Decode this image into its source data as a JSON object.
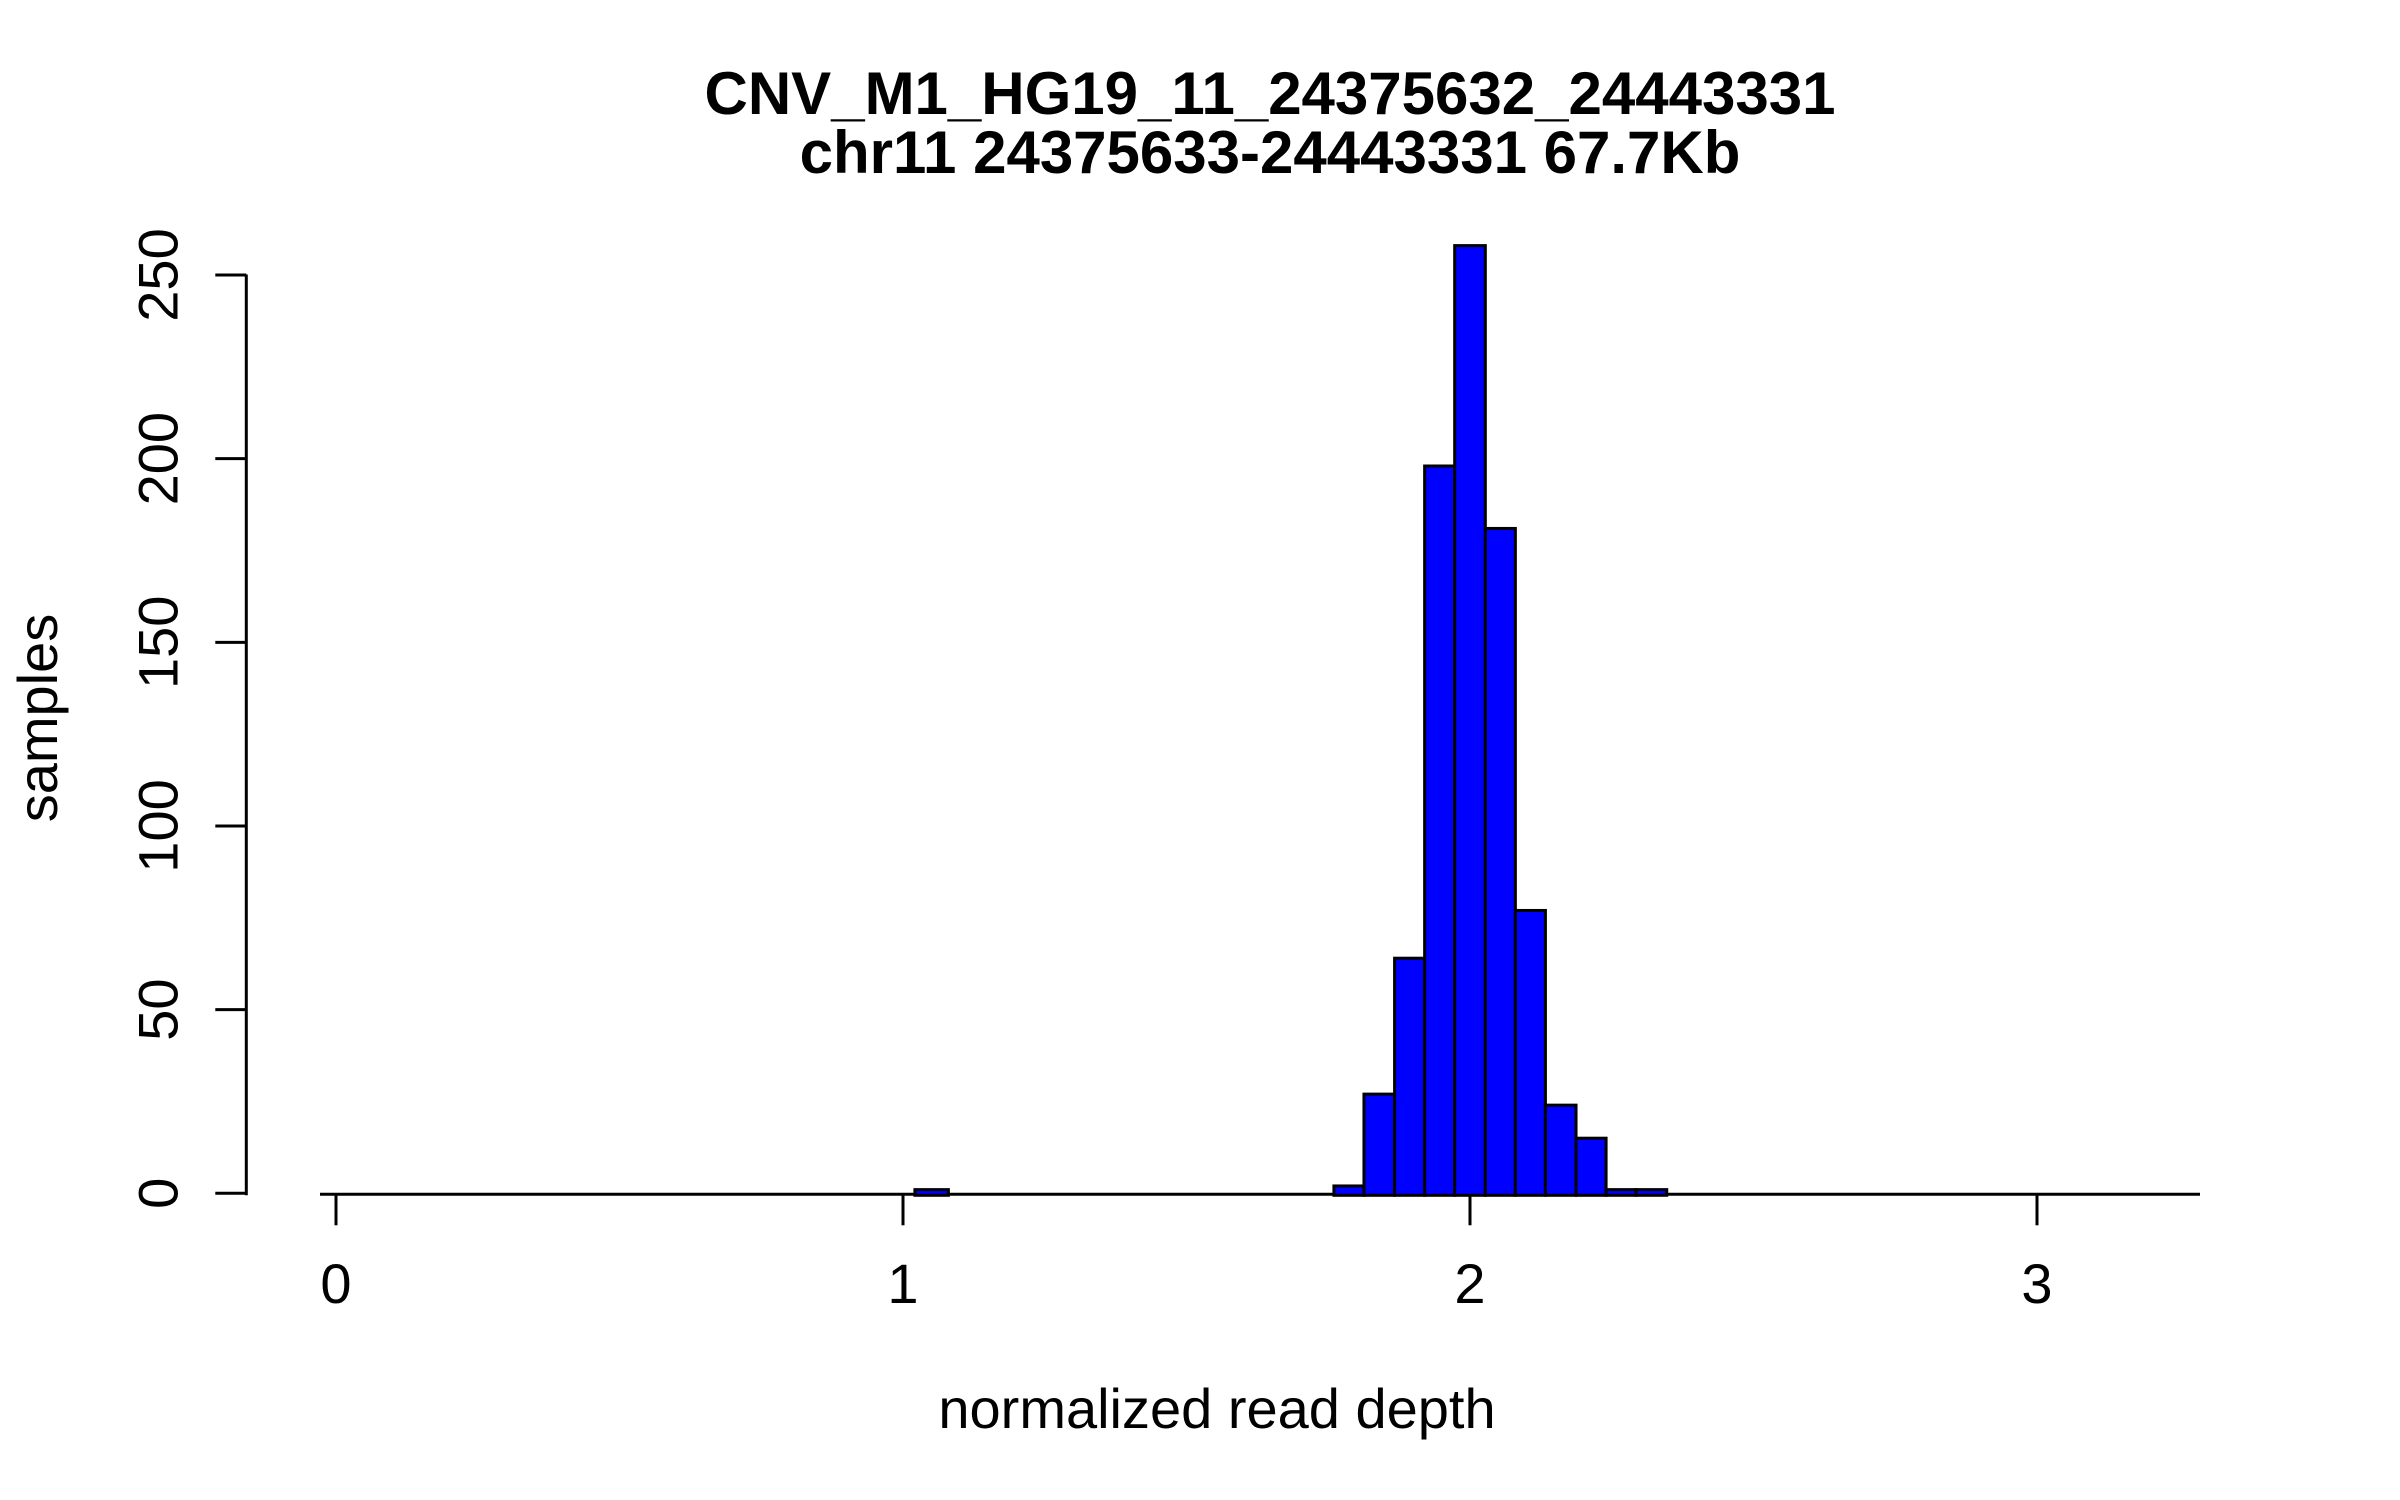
{
  "title": {
    "line1": "CNV_M1_HG19_11_24375632_24443331",
    "line2": "chr11 24375633-24443331 67.7Kb"
  },
  "axes": {
    "xlabel": "normalized read depth",
    "ylabel": "samples",
    "x_ticks": [
      0,
      1,
      2,
      3
    ],
    "y_ticks": [
      0,
      50,
      100,
      150,
      200,
      250
    ]
  },
  "colors": {
    "bar_fill": "#0000FF",
    "bar_border": "#000000",
    "axis": "#000000",
    "background": "#FFFFFF",
    "text": "#000000"
  },
  "chart_data": {
    "type": "bar",
    "title": "CNV_M1_HG19_11_24375632_24443331",
    "subtitle": "chr11 24375633-24443331 67.7Kb",
    "xlabel": "normalized read depth",
    "ylabel": "samples",
    "xlim": [
      -0.03,
      3.29
    ],
    "ylim": [
      0,
      258
    ],
    "grid": false,
    "legend": "none",
    "bins": [
      {
        "x0": 1.021,
        "x1": 1.08,
        "count": 1
      },
      {
        "x0": 1.76,
        "x1": 1.813,
        "count": 2
      },
      {
        "x0": 1.813,
        "x1": 1.867,
        "count": 27
      },
      {
        "x0": 1.867,
        "x1": 1.92,
        "count": 64
      },
      {
        "x0": 1.92,
        "x1": 1.973,
        "count": 198
      },
      {
        "x0": 1.973,
        "x1": 2.027,
        "count": 258
      },
      {
        "x0": 2.027,
        "x1": 2.08,
        "count": 181
      },
      {
        "x0": 2.08,
        "x1": 2.133,
        "count": 77
      },
      {
        "x0": 2.133,
        "x1": 2.187,
        "count": 24
      },
      {
        "x0": 2.187,
        "x1": 2.24,
        "count": 15
      },
      {
        "x0": 2.24,
        "x1": 2.293,
        "count": 1
      },
      {
        "x0": 2.293,
        "x1": 2.347,
        "count": 1
      }
    ]
  }
}
